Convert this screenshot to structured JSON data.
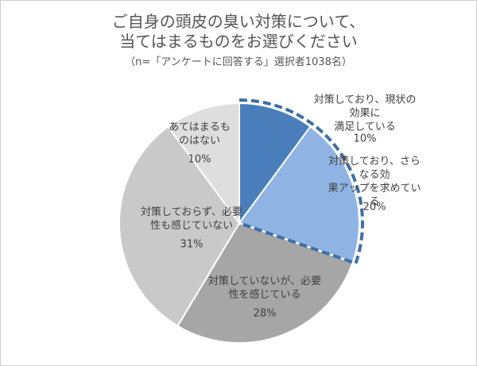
{
  "chart_data": {
    "type": "pie",
    "title": "ご自身の頭皮の臭い対策について、\n当てはまるものをお選びください",
    "subtitle": "（n=「アンケートに回答する」選択者1038名）",
    "categories": [
      "対策しており、現状の効果に\n満足している",
      "対策しており、さらなる効\n果アップを求めている",
      "対策していないが、必要\n性を感じている",
      "対策しておらず、必要\n性も感じていない",
      "あてはまるも\nのはない"
    ],
    "values": [
      10,
      20,
      28,
      31,
      10
    ],
    "value_labels": [
      "10%",
      "20%",
      "28%",
      "31%",
      "10%"
    ],
    "colors": [
      "#4a7ebb",
      "#8fb4e3",
      "#a6a6a6",
      "#c9c9c9",
      "#dedede"
    ]
  }
}
